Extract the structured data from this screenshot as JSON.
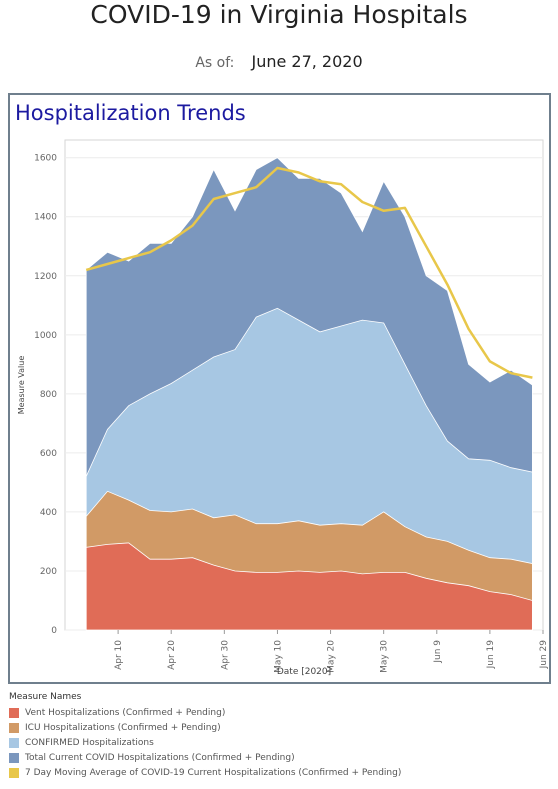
{
  "header": {
    "title": "COVID-19 in Virginia Hospitals",
    "as_of_label": "As of:",
    "as_of_value": "June 27, 2020"
  },
  "panel": {
    "title": "Hospitalization Trends"
  },
  "chart_data": {
    "type": "area",
    "xlabel": "Date [2020]",
    "ylabel": "Measure Value",
    "ylim": [
      0,
      1660
    ],
    "y_ticks": [
      0,
      200,
      400,
      600,
      800,
      1000,
      1200,
      1400,
      1600
    ],
    "x_range": [
      "2020-03-31",
      "2020-06-29"
    ],
    "x_ticks": [
      {
        "date": "2020-04-10",
        "label": "Apr 10"
      },
      {
        "date": "2020-04-20",
        "label": "Apr 20"
      },
      {
        "date": "2020-04-30",
        "label": "Apr 30"
      },
      {
        "date": "2020-05-10",
        "label": "May 10"
      },
      {
        "date": "2020-05-20",
        "label": "May 20"
      },
      {
        "date": "2020-05-30",
        "label": "May 30"
      },
      {
        "date": "2020-06-09",
        "label": "Jun 9"
      },
      {
        "date": "2020-06-19",
        "label": "Jun 19"
      },
      {
        "date": "2020-06-29",
        "label": "Jun 29"
      }
    ],
    "grid": "horizontal",
    "legend_title": "Measure Names",
    "series": [
      {
        "name": "Vent Hospitalizations (Confirmed + Pending)",
        "color": "#e06c57",
        "style": "area",
        "points": [
          [
            "2020-04-04",
            280
          ],
          [
            "2020-04-08",
            290
          ],
          [
            "2020-04-12",
            295
          ],
          [
            "2020-04-16",
            240
          ],
          [
            "2020-04-20",
            240
          ],
          [
            "2020-04-24",
            245
          ],
          [
            "2020-04-28",
            220
          ],
          [
            "2020-05-02",
            200
          ],
          [
            "2020-05-06",
            195
          ],
          [
            "2020-05-10",
            195
          ],
          [
            "2020-05-14",
            200
          ],
          [
            "2020-05-18",
            195
          ],
          [
            "2020-05-22",
            200
          ],
          [
            "2020-05-26",
            190
          ],
          [
            "2020-05-30",
            195
          ],
          [
            "2020-06-03",
            195
          ],
          [
            "2020-06-07",
            175
          ],
          [
            "2020-06-11",
            160
          ],
          [
            "2020-06-15",
            150
          ],
          [
            "2020-06-19",
            130
          ],
          [
            "2020-06-23",
            120
          ],
          [
            "2020-06-27",
            100
          ]
        ]
      },
      {
        "name": "ICU Hospitalizations (Confirmed + Pending)",
        "color": "#d19a66",
        "style": "area",
        "points": [
          [
            "2020-04-04",
            385
          ],
          [
            "2020-04-08",
            470
          ],
          [
            "2020-04-12",
            440
          ],
          [
            "2020-04-16",
            405
          ],
          [
            "2020-04-20",
            400
          ],
          [
            "2020-04-24",
            410
          ],
          [
            "2020-04-28",
            380
          ],
          [
            "2020-05-02",
            390
          ],
          [
            "2020-05-06",
            360
          ],
          [
            "2020-05-10",
            360
          ],
          [
            "2020-05-14",
            370
          ],
          [
            "2020-05-18",
            355
          ],
          [
            "2020-05-22",
            360
          ],
          [
            "2020-05-26",
            355
          ],
          [
            "2020-05-30",
            400
          ],
          [
            "2020-06-03",
            350
          ],
          [
            "2020-06-07",
            315
          ],
          [
            "2020-06-11",
            300
          ],
          [
            "2020-06-15",
            270
          ],
          [
            "2020-06-19",
            245
          ],
          [
            "2020-06-23",
            240
          ],
          [
            "2020-06-27",
            225
          ]
        ]
      },
      {
        "name": "CONFIRMED Hospitalizations",
        "color": "#a7c7e3",
        "style": "area",
        "points": [
          [
            "2020-04-04",
            520
          ],
          [
            "2020-04-08",
            680
          ],
          [
            "2020-04-12",
            760
          ],
          [
            "2020-04-16",
            800
          ],
          [
            "2020-04-20",
            835
          ],
          [
            "2020-04-24",
            880
          ],
          [
            "2020-04-28",
            925
          ],
          [
            "2020-05-02",
            950
          ],
          [
            "2020-05-06",
            1060
          ],
          [
            "2020-05-10",
            1090
          ],
          [
            "2020-05-14",
            1050
          ],
          [
            "2020-05-18",
            1010
          ],
          [
            "2020-05-22",
            1030
          ],
          [
            "2020-05-26",
            1050
          ],
          [
            "2020-05-30",
            1040
          ],
          [
            "2020-06-03",
            900
          ],
          [
            "2020-06-07",
            760
          ],
          [
            "2020-06-11",
            640
          ],
          [
            "2020-06-15",
            580
          ],
          [
            "2020-06-19",
            575
          ],
          [
            "2020-06-23",
            550
          ],
          [
            "2020-06-27",
            535
          ]
        ]
      },
      {
        "name": "Total Current COVID Hospitalizations (Confirmed + Pending)",
        "color": "#7b97be",
        "style": "area",
        "points": [
          [
            "2020-04-04",
            1220
          ],
          [
            "2020-04-08",
            1280
          ],
          [
            "2020-04-12",
            1250
          ],
          [
            "2020-04-16",
            1310
          ],
          [
            "2020-04-20",
            1310
          ],
          [
            "2020-04-24",
            1400
          ],
          [
            "2020-04-28",
            1560
          ],
          [
            "2020-05-02",
            1420
          ],
          [
            "2020-05-06",
            1560
          ],
          [
            "2020-05-10",
            1600
          ],
          [
            "2020-05-14",
            1530
          ],
          [
            "2020-05-18",
            1530
          ],
          [
            "2020-05-22",
            1480
          ],
          [
            "2020-05-26",
            1350
          ],
          [
            "2020-05-30",
            1520
          ],
          [
            "2020-06-03",
            1400
          ],
          [
            "2020-06-07",
            1200
          ],
          [
            "2020-06-11",
            1150
          ],
          [
            "2020-06-15",
            900
          ],
          [
            "2020-06-19",
            840
          ],
          [
            "2020-06-23",
            880
          ],
          [
            "2020-06-27",
            830
          ]
        ]
      },
      {
        "name": "7 Day Moving Average of COVID-19 Current Hospitalizations (Confirmed + Pending)",
        "color": "#e8c74a",
        "style": "line",
        "points": [
          [
            "2020-04-04",
            1220
          ],
          [
            "2020-04-08",
            1240
          ],
          [
            "2020-04-12",
            1260
          ],
          [
            "2020-04-16",
            1280
          ],
          [
            "2020-04-20",
            1320
          ],
          [
            "2020-04-24",
            1370
          ],
          [
            "2020-04-28",
            1460
          ],
          [
            "2020-05-02",
            1480
          ],
          [
            "2020-05-06",
            1500
          ],
          [
            "2020-05-10",
            1565
          ],
          [
            "2020-05-14",
            1550
          ],
          [
            "2020-05-18",
            1520
          ],
          [
            "2020-05-22",
            1510
          ],
          [
            "2020-05-26",
            1450
          ],
          [
            "2020-05-30",
            1420
          ],
          [
            "2020-06-03",
            1430
          ],
          [
            "2020-06-07",
            1300
          ],
          [
            "2020-06-11",
            1170
          ],
          [
            "2020-06-15",
            1020
          ],
          [
            "2020-06-19",
            910
          ],
          [
            "2020-06-23",
            870
          ],
          [
            "2020-06-27",
            855
          ]
        ]
      }
    ]
  }
}
